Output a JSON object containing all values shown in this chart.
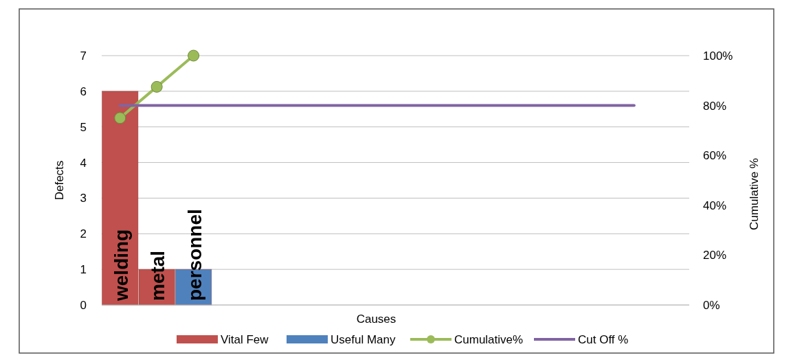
{
  "chart_data": {
    "type": "bar",
    "xlabel": "Causes",
    "ylabel": "Defects",
    "y2label": "Cumulative %",
    "categories": [
      "welding",
      "metal",
      "personnel",
      null,
      null,
      null,
      null,
      null,
      null,
      null,
      null,
      null,
      null,
      null,
      null,
      null
    ],
    "series": [
      {
        "name": "Vital Few",
        "color": "#c0504d",
        "values": [
          6,
          1,
          null,
          null,
          null,
          null,
          null,
          null,
          null,
          null,
          null,
          null,
          null,
          null,
          null,
          null
        ]
      },
      {
        "name": "Useful Many",
        "color": "#4f81bd",
        "values": [
          null,
          null,
          1,
          null,
          null,
          null,
          null,
          null,
          null,
          null,
          null,
          null,
          null,
          null,
          null,
          null
        ]
      },
      {
        "name": "Cumulative%",
        "type": "line",
        "axis": "y2",
        "color": "#9bbb59",
        "marker": "circle",
        "values": [
          75,
          87.5,
          100,
          null,
          null,
          null,
          null,
          null,
          null,
          null,
          null,
          null,
          null,
          null,
          null,
          null
        ]
      },
      {
        "name": "Cut Off %",
        "type": "line",
        "axis": "y2",
        "color": "#8064a2",
        "marker": "none",
        "values": [
          80,
          80,
          80,
          80,
          80,
          80,
          80,
          80,
          80,
          80,
          80,
          80,
          80,
          80,
          80,
          null
        ]
      }
    ],
    "ylim": [
      0,
      7
    ],
    "yticks": [
      0,
      1,
      2,
      3,
      4,
      5,
      6,
      7
    ],
    "y2lim": [
      0,
      100
    ],
    "y2ticks": [
      {
        "value": 0,
        "label": "0%"
      },
      {
        "value": 20,
        "label": "20%"
      },
      {
        "value": 40,
        "label": "40%"
      },
      {
        "value": 60,
        "label": "60%"
      },
      {
        "value": 80,
        "label": "80%"
      },
      {
        "value": 100,
        "label": "100%"
      }
    ],
    "grid": "y",
    "legend": "bottom"
  }
}
